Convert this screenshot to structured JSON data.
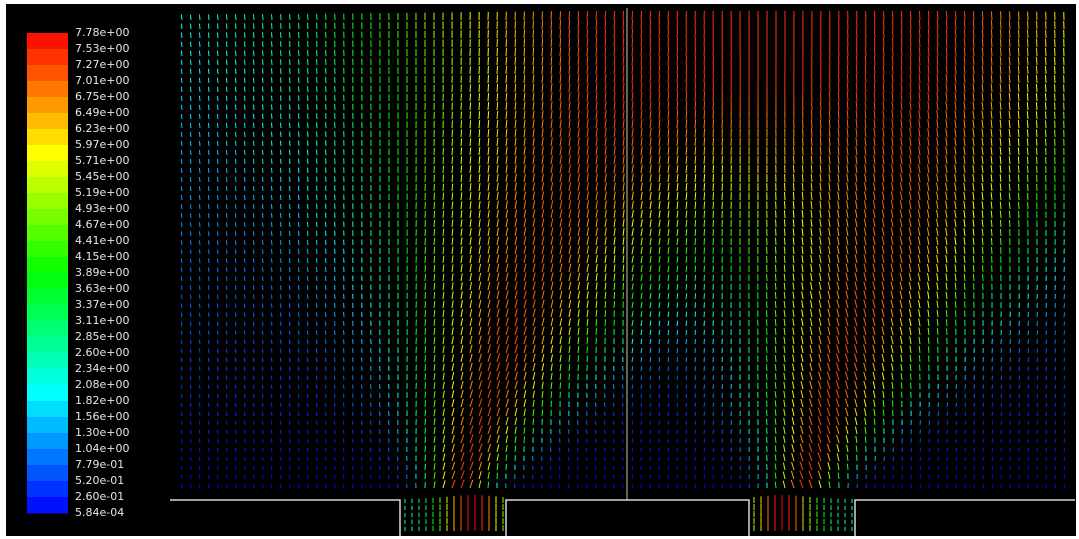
{
  "colorbar": {
    "labels": [
      "7.78e+00",
      "7.53e+00",
      "7.27e+00",
      "7.01e+00",
      "6.75e+00",
      "6.49e+00",
      "6.23e+00",
      "5.97e+00",
      "5.71e+00",
      "5.45e+00",
      "5.19e+00",
      "4.93e+00",
      "4.67e+00",
      "4.41e+00",
      "4.15e+00",
      "3.89e+00",
      "3.63e+00",
      "3.37e+00",
      "3.11e+00",
      "2.85e+00",
      "2.60e+00",
      "2.34e+00",
      "2.08e+00",
      "1.82e+00",
      "1.56e+00",
      "1.30e+00",
      "1.04e+00",
      "7.79e-01",
      "5.20e-01",
      "2.60e-01",
      "5.84e-04"
    ]
  }
}
